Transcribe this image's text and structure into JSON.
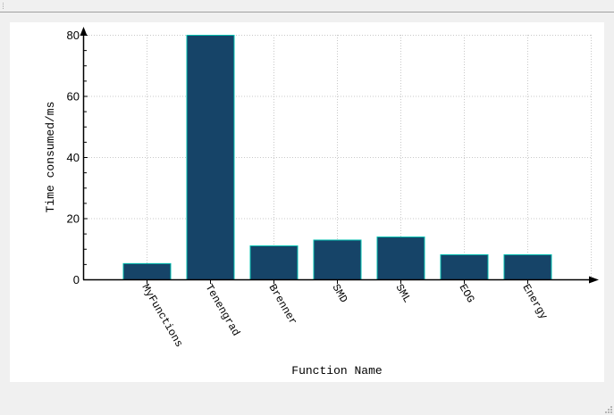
{
  "window": {
    "toolbar_grip": "toolbar-handle"
  },
  "chart_data": {
    "type": "bar",
    "title": "",
    "xlabel": "Function Name",
    "ylabel": "Time consumed/ms",
    "categories": [
      "MyFunctions",
      "Tenengrad",
      "Brenner",
      "SMD",
      "SML",
      "EOG",
      "Energy"
    ],
    "values": [
      5.3,
      80,
      11.1,
      13.0,
      14.0,
      8.2,
      8.2
    ],
    "ylim": [
      0,
      80
    ],
    "yticks": [
      "0",
      "20",
      "40",
      "60",
      "80"
    ],
    "grid": true,
    "legend": null,
    "colors": {
      "bar_fill": "#164468",
      "bar_edge": "#00c0b0",
      "axis": "#000000",
      "grid": "#c8c8c8"
    }
  }
}
